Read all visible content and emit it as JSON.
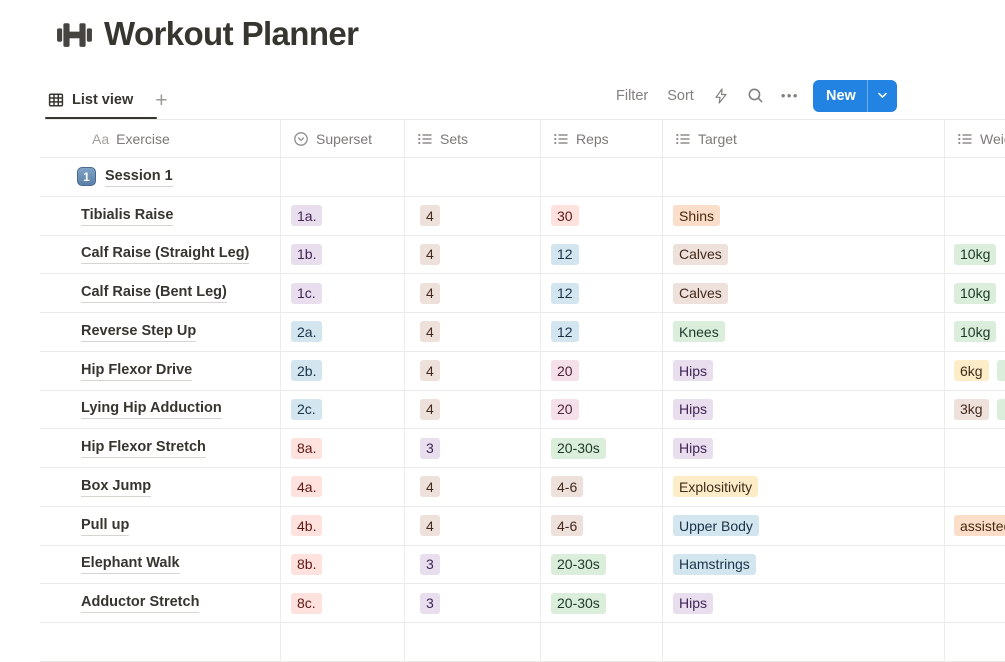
{
  "page": {
    "title": "Workout Planner",
    "icon": "dumbbell-icon"
  },
  "view_tabs": {
    "active": "List view",
    "add_label": "+"
  },
  "toolbar": {
    "filter": "Filter",
    "sort": "Sort",
    "ellipsis": "•••",
    "new_label": "New",
    "new_button_color": "#2383E2"
  },
  "table": {
    "columns": [
      {
        "key": "exercise",
        "label": "Exercise",
        "icon": "title-type-icon",
        "icon_glyph": "Aa"
      },
      {
        "key": "superset",
        "label": "Superset",
        "icon": "select-type-icon"
      },
      {
        "key": "sets",
        "label": "Sets",
        "icon": "multiselect-type-icon"
      },
      {
        "key": "reps",
        "label": "Reps",
        "icon": "multiselect-type-icon"
      },
      {
        "key": "target",
        "label": "Target",
        "icon": "multiselect-type-icon"
      },
      {
        "key": "weight",
        "label": "Weight",
        "icon": "multiselect-type-icon"
      }
    ],
    "tag_colors": {
      "red": {
        "bg": "#FFE2DD",
        "text": "#5D1715"
      },
      "pink": {
        "bg": "#F5E0E9",
        "text": "#4C2337"
      },
      "purple": {
        "bg": "#E8DEEE",
        "text": "#412454"
      },
      "blue": {
        "bg": "#D3E5EF",
        "text": "#183347"
      },
      "green": {
        "bg": "#DBEDDB",
        "text": "#1C3829"
      },
      "yellow": {
        "bg": "#FDECC8",
        "text": "#402C1B"
      },
      "orange": {
        "bg": "#FADEC9",
        "text": "#49290E"
      },
      "brown": {
        "bg": "#EEE0DA",
        "text": "#442A1E"
      }
    },
    "rows": [
      {
        "exercise": "Session 1",
        "icon": {
          "name": "keycap-1-icon",
          "text": "1"
        },
        "superset": null,
        "sets": null,
        "reps": null,
        "target": null,
        "weight": []
      },
      {
        "exercise": "Tibialis Raise",
        "superset": {
          "label": "1a.",
          "color": "purple"
        },
        "sets": {
          "label": "4",
          "color": "brown"
        },
        "reps": {
          "label": "30",
          "color": "red"
        },
        "target": {
          "label": "Shins",
          "color": "orange"
        },
        "weight": []
      },
      {
        "exercise": "Calf Raise (Straight Leg)",
        "superset": {
          "label": "1b.",
          "color": "purple"
        },
        "sets": {
          "label": "4",
          "color": "brown"
        },
        "reps": {
          "label": "12",
          "color": "blue"
        },
        "target": {
          "label": "Calves",
          "color": "brown"
        },
        "weight": [
          {
            "label": "10kg",
            "color": "green"
          }
        ]
      },
      {
        "exercise": "Calf Raise (Bent Leg)",
        "superset": {
          "label": "1c.",
          "color": "purple"
        },
        "sets": {
          "label": "4",
          "color": "brown"
        },
        "reps": {
          "label": "12",
          "color": "blue"
        },
        "target": {
          "label": "Calves",
          "color": "brown"
        },
        "weight": [
          {
            "label": "10kg",
            "color": "green"
          }
        ]
      },
      {
        "exercise": "Reverse Step Up",
        "superset": {
          "label": "2a.",
          "color": "blue"
        },
        "sets": {
          "label": "4",
          "color": "brown"
        },
        "reps": {
          "label": "12",
          "color": "blue"
        },
        "target": {
          "label": "Knees",
          "color": "green"
        },
        "weight": [
          {
            "label": "10kg",
            "color": "green"
          }
        ]
      },
      {
        "exercise": "Hip Flexor Drive",
        "superset": {
          "label": "2b.",
          "color": "blue"
        },
        "sets": {
          "label": "4",
          "color": "brown"
        },
        "reps": {
          "label": "20",
          "color": "pink"
        },
        "target": {
          "label": "Hips",
          "color": "purple"
        },
        "weight": [
          {
            "label": "6kg",
            "color": "yellow"
          },
          {
            "label": "",
            "color": "green",
            "partial": true
          }
        ]
      },
      {
        "exercise": "Lying Hip Adduction",
        "superset": {
          "label": "2c.",
          "color": "blue"
        },
        "sets": {
          "label": "4",
          "color": "brown"
        },
        "reps": {
          "label": "20",
          "color": "pink"
        },
        "target": {
          "label": "Hips",
          "color": "purple"
        },
        "weight": [
          {
            "label": "3kg",
            "color": "brown"
          },
          {
            "label": "",
            "color": "green",
            "partial": true
          }
        ]
      },
      {
        "exercise": "Hip Flexor Stretch",
        "superset": {
          "label": "8a.",
          "color": "red"
        },
        "sets": {
          "label": "3",
          "color": "purple"
        },
        "reps": {
          "label": "20-30s",
          "color": "green"
        },
        "target": {
          "label": "Hips",
          "color": "purple"
        },
        "weight": []
      },
      {
        "exercise": "Box Jump",
        "superset": {
          "label": "4a.",
          "color": "red"
        },
        "sets": {
          "label": "4",
          "color": "brown"
        },
        "reps": {
          "label": "4-6",
          "color": "brown"
        },
        "target": {
          "label": "Explositivity",
          "color": "yellow"
        },
        "weight": []
      },
      {
        "exercise": "Pull up",
        "superset": {
          "label": "4b.",
          "color": "red"
        },
        "sets": {
          "label": "4",
          "color": "brown"
        },
        "reps": {
          "label": "4-6",
          "color": "brown"
        },
        "target": {
          "label": "Upper Body",
          "color": "blue"
        },
        "weight": [
          {
            "label": "assisted",
            "color": "orange"
          }
        ]
      },
      {
        "exercise": "Elephant Walk",
        "superset": {
          "label": "8b.",
          "color": "red"
        },
        "sets": {
          "label": "3",
          "color": "purple"
        },
        "reps": {
          "label": "20-30s",
          "color": "green"
        },
        "target": {
          "label": "Hamstrings",
          "color": "blue"
        },
        "weight": []
      },
      {
        "exercise": "Adductor Stretch",
        "superset": {
          "label": "8c.",
          "color": "red"
        },
        "sets": {
          "label": "3",
          "color": "purple"
        },
        "reps": {
          "label": "20-30s",
          "color": "green"
        },
        "target": {
          "label": "Hips",
          "color": "purple"
        },
        "weight": []
      }
    ]
  }
}
